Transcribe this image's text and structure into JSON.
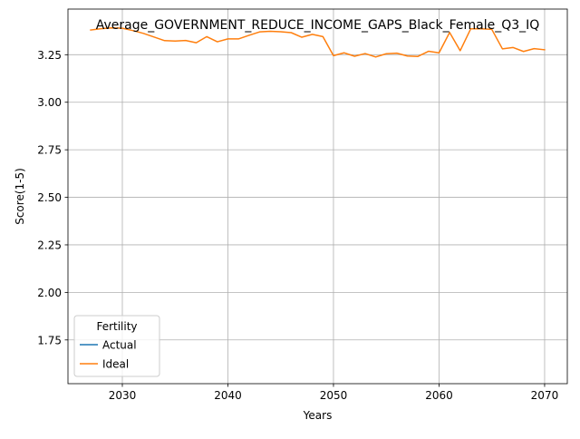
{
  "chart_data": {
    "type": "line",
    "title": "Average_GOVERNMENT_REDUCE_INCOME_GAPS_Black_Female_Q3_IQ",
    "xlabel": "Years",
    "ylabel": "Score(1-5)",
    "xlim": [
      2024.85,
      2072.15
    ],
    "ylim": [
      1.52,
      3.49
    ],
    "xticks": [
      2030,
      2040,
      2050,
      2060,
      2070
    ],
    "yticks": [
      1.75,
      2.0,
      2.25,
      2.5,
      2.75,
      3.0,
      3.25
    ],
    "grid": true,
    "legend": {
      "title": "Fertility",
      "placement": "lower-left",
      "entries": [
        {
          "name": "Actual",
          "color": "#1f77b4"
        },
        {
          "name": "Ideal",
          "color": "#ff7f0e"
        }
      ]
    },
    "series": [
      {
        "name": "Actual",
        "color": "#1f77b4",
        "x": [],
        "values": []
      },
      {
        "name": "Ideal",
        "color": "#ff7f0e",
        "x": [
          2027,
          2028,
          2029,
          2030,
          2031,
          2032,
          2033,
          2034,
          2035,
          2036,
          2037,
          2038,
          2039,
          2040,
          2041,
          2042,
          2043,
          2044,
          2045,
          2046,
          2047,
          2048,
          2049,
          2050,
          2051,
          2052,
          2053,
          2054,
          2055,
          2056,
          2057,
          2058,
          2059,
          2060,
          2061,
          2062,
          2063,
          2064,
          2065,
          2066,
          2067,
          2068,
          2069,
          2070
        ],
        "values": [
          3.38,
          3.387,
          3.391,
          3.389,
          3.377,
          3.362,
          3.343,
          3.324,
          3.322,
          3.325,
          3.313,
          3.345,
          3.318,
          3.333,
          3.333,
          3.352,
          3.37,
          3.373,
          3.371,
          3.366,
          3.342,
          3.357,
          3.345,
          3.245,
          3.26,
          3.242,
          3.256,
          3.238,
          3.255,
          3.258,
          3.243,
          3.241,
          3.268,
          3.26,
          3.367,
          3.271,
          3.386,
          3.386,
          3.383,
          3.281,
          3.288,
          3.267,
          3.282,
          3.276
        ]
      }
    ]
  }
}
